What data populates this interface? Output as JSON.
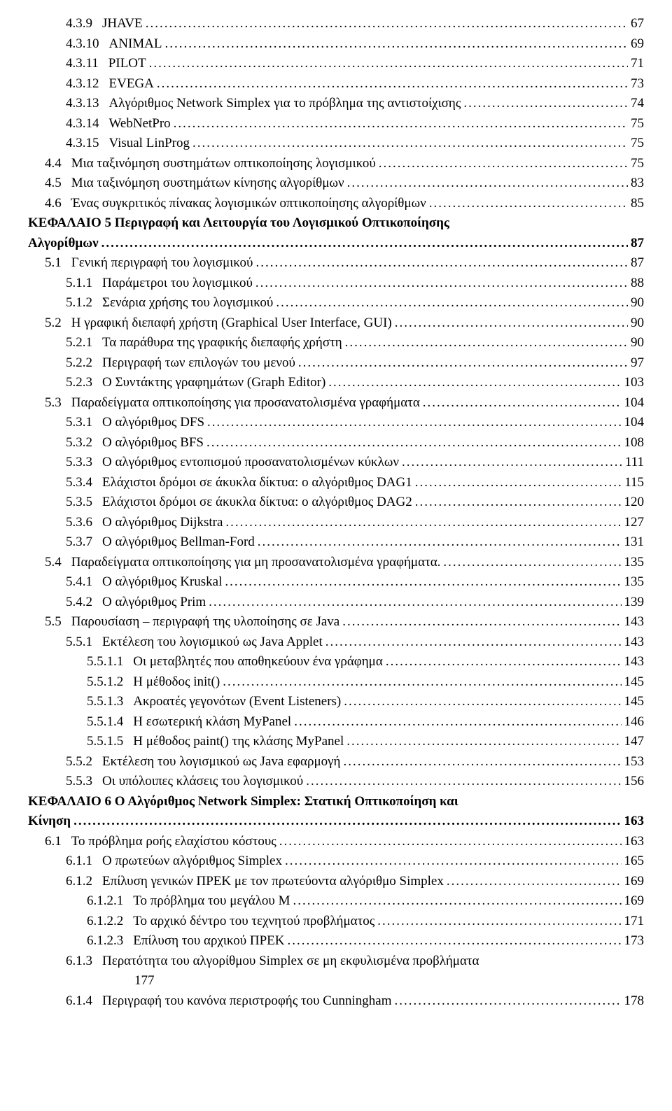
{
  "entries": [
    {
      "num": "4.3.9",
      "text": "JHAVE",
      "page": "67",
      "lvl": "lvl2"
    },
    {
      "num": "4.3.10",
      "text": "ANIMAL",
      "page": "69",
      "lvl": "lvl2"
    },
    {
      "num": "4.3.11",
      "text": "PILOT",
      "page": "71",
      "lvl": "lvl2"
    },
    {
      "num": "4.3.12",
      "text": "EVEGA",
      "page": "73",
      "lvl": "lvl2"
    },
    {
      "num": "4.3.13",
      "text": "Αλγόριθμος Network Simplex για το πρόβλημα της αντιστοίχισης",
      "page": "74",
      "lvl": "lvl2"
    },
    {
      "num": "4.3.14",
      "text": "WebNetPro",
      "page": "75",
      "lvl": "lvl2"
    },
    {
      "num": "4.3.15",
      "text": "Visual LinProg",
      "page": "75",
      "lvl": "lvl2"
    },
    {
      "num": "4.4",
      "text": "Μια ταξινόμηση συστημάτων οπτικοποίησης λογισμικού",
      "page": "75",
      "lvl": "lvl1"
    },
    {
      "num": "4.5",
      "text": "Μια ταξινόμηση συστημάτων κίνησης αλγορίθμων",
      "page": "83",
      "lvl": "lvl1"
    },
    {
      "num": "4.6",
      "text": "Ένας συγκριτικός πίνακας λογισμικών οπτικοποίησης αλγορίθμων",
      "page": "85",
      "lvl": "lvl1"
    }
  ],
  "chap5": {
    "line1": "ΚΕΦΑΛΑΙΟ 5 Περιγραφή και Λειτουργία του  Λογισμικού Οπτικοποίησης",
    "line2_text": "Αλγορίθμων",
    "line2_page": "87"
  },
  "entries2": [
    {
      "num": "5.1",
      "text": "Γενική περιγραφή του λογισμικού",
      "page": "87",
      "lvl": "lvl1"
    },
    {
      "num": "5.1.1",
      "text": "Παράμετροι του λογισμικού",
      "page": "88",
      "lvl": "lvl2"
    },
    {
      "num": "5.1.2",
      "text": "Σενάρια χρήσης του λογισμικού",
      "page": "90",
      "lvl": "lvl2"
    },
    {
      "num": "5.2",
      "text": "Η γραφική διεπαφή χρήστη (Graphical User Interface, GUI)",
      "page": "90",
      "lvl": "lvl1"
    },
    {
      "num": "5.2.1",
      "text": "Τα παράθυρα της γραφικής διεπαφής χρήστη",
      "page": "90",
      "lvl": "lvl2"
    },
    {
      "num": "5.2.2",
      "text": "Περιγραφή των επιλογών του μενού",
      "page": "97",
      "lvl": "lvl2"
    },
    {
      "num": "5.2.3",
      "text": "Ο Συντάκτης γραφημάτων (Graph Editor)",
      "page": "103",
      "lvl": "lvl2"
    },
    {
      "num": "5.3",
      "text": "Παραδείγματα οπτικοποίησης για προσανατολισμένα γραφήματα",
      "page": "104",
      "lvl": "lvl1"
    },
    {
      "num": "5.3.1",
      "text": "Ο αλγόριθμος DFS",
      "page": "104",
      "lvl": "lvl2"
    },
    {
      "num": "5.3.2",
      "text": "Ο αλγόριθμος BFS",
      "page": "108",
      "lvl": "lvl2"
    },
    {
      "num": "5.3.3",
      "text": "Ο αλγόριθμος εντοπισμού προσανατολισμένων κύκλων",
      "page": "111",
      "lvl": "lvl2"
    },
    {
      "num": "5.3.4",
      "text": "Ελάχιστοι δρόμοι σε άκυκλα δίκτυα: ο αλγόριθμος DAG1",
      "page": "115",
      "lvl": "lvl2"
    },
    {
      "num": "5.3.5",
      "text": "Ελάχιστοι δρόμοι σε άκυκλα δίκτυα: ο αλγόριθμος DAG2",
      "page": "120",
      "lvl": "lvl2"
    },
    {
      "num": "5.3.6",
      "text": "Ο αλγόριθμος Dijkstra",
      "page": "127",
      "lvl": "lvl2"
    },
    {
      "num": "5.3.7",
      "text": "Ο αλγόριθμος Bellman-Ford",
      "page": "131",
      "lvl": "lvl2"
    },
    {
      "num": "5.4",
      "text": "Παραδείγματα οπτικοποίησης για μη προσανατολισμένα γραφήματα.",
      "page": "135",
      "lvl": "lvl1"
    },
    {
      "num": "5.4.1",
      "text": "Ο αλγόριθμος Kruskal",
      "page": "135",
      "lvl": "lvl2"
    },
    {
      "num": "5.4.2",
      "text": "Ο αλγόριθμος Prim",
      "page": "139",
      "lvl": "lvl2"
    },
    {
      "num": "5.5",
      "text": "Παρουσίαση – περιγραφή της υλοποίησης σε Java",
      "page": "143",
      "lvl": "lvl1"
    },
    {
      "num": "5.5.1",
      "text": "Εκτέλεση του λογισμικού ως Java Applet",
      "page": "143",
      "lvl": "lvl2"
    },
    {
      "num": "5.5.1.1",
      "text": "Οι μεταβλητές που αποθηκεύουν ένα γράφημα",
      "page": "143",
      "lvl": "lvl3"
    },
    {
      "num": "5.5.1.2",
      "text": "Η μέθοδος init()",
      "page": "145",
      "lvl": "lvl3"
    },
    {
      "num": "5.5.1.3",
      "text": "Ακροατές γεγονότων (Event Listeners)",
      "page": "145",
      "lvl": "lvl3"
    },
    {
      "num": "5.5.1.4",
      "text": "Η εσωτερική κλάση MyPanel",
      "page": "146",
      "lvl": "lvl3"
    },
    {
      "num": "5.5.1.5",
      "text": "Η μέθοδος paint() της κλάσης MyPanel",
      "page": "147",
      "lvl": "lvl3"
    },
    {
      "num": "5.5.2",
      "text": "Εκτέλεση του λογισμικού ως Java εφαρμογή",
      "page": "153",
      "lvl": "lvl2"
    },
    {
      "num": "5.5.3",
      "text": "Οι υπόλοιπες κλάσεις του λογισμικού",
      "page": "156",
      "lvl": "lvl2"
    }
  ],
  "chap6": {
    "line1": "ΚΕΦΑΛΑΙΟ 6 Ο Αλγόριθμος Network Simplex: Στατική  Οπτικοποίηση και",
    "line2_text": "Κίνηση",
    "line2_page": "163"
  },
  "entries3": [
    {
      "num": "6.1",
      "text": "Το πρόβλημα ροής ελαχίστου κόστους",
      "page": "163",
      "lvl": "lvl1"
    },
    {
      "num": "6.1.1",
      "text": "Ο πρωτεύων αλγόριθμος Simplex",
      "page": "165",
      "lvl": "lvl2"
    },
    {
      "num": "6.1.2",
      "text": "Επίλυση γενικών ΠΡΕΚ με τον πρωτεύοντα αλγόριθμο Simplex",
      "page": "169",
      "lvl": "lvl2"
    },
    {
      "num": "6.1.2.1",
      "text": "Το πρόβλημα του μεγάλου Μ",
      "page": "169",
      "lvl": "lvl3"
    },
    {
      "num": "6.1.2.2",
      "text": "Το αρχικό δέντρο του τεχνητού προβλήματος",
      "page": "171",
      "lvl": "lvl3"
    },
    {
      "num": "6.1.2.3",
      "text": "Επίλυση του αρχικού ΠΡΕΚ",
      "page": "173",
      "lvl": "lvl3"
    }
  ],
  "entry_613": {
    "num": "6.1.3",
    "text": "Περατότητα του αλγορίθμου Simplex σε μη εκφυλισμένα προβλήματα",
    "page": "177",
    "lvl": "lvl2"
  },
  "entry_614": {
    "num": "6.1.4",
    "text": "Περιγραφή του κανόνα περιστροφής του Cunningham",
    "page": "178",
    "lvl": "lvl2"
  }
}
